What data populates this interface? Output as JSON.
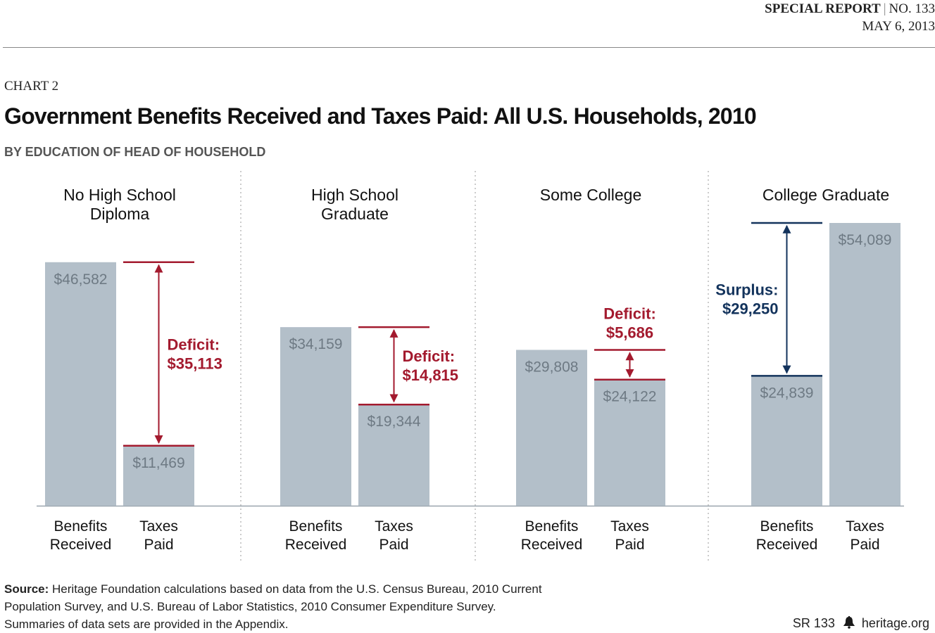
{
  "header": {
    "report_label": "SPECIAL REPORT",
    "report_number": "NO. 133",
    "date": "MAY 6, 2013"
  },
  "kicker": "CHART 2",
  "title": "Government Benefits Received and Taxes Paid: All U.S. Households, 2010",
  "subtitle": "BY EDUCATION OF HEAD OF HOUSEHOLD",
  "colors": {
    "bar": "#b3bfc9",
    "bar_label": "#6e7a84",
    "deficit": "#a31a2e",
    "surplus": "#13335c"
  },
  "chart_data": {
    "type": "bar",
    "title": "Government Benefits Received and Taxes Paid: All U.S. Households, 2010",
    "subtitle": "BY EDUCATION OF HEAD OF HOUSEHOLD",
    "ylim": [
      0,
      54089
    ],
    "grid": false,
    "bar_labels": [
      "Benefits\nReceived",
      "Taxes\nPaid"
    ],
    "groups": [
      {
        "name": "No High School\nDiploma",
        "benefits": 46582,
        "taxes": 11469,
        "benefits_label": "$46,582",
        "taxes_label": "$11,469",
        "diff_type": "deficit",
        "diff_label": "Deficit:",
        "diff_value": "$35,113",
        "diff_amount": 35113
      },
      {
        "name": "High School\nGraduate",
        "benefits": 34159,
        "taxes": 19344,
        "benefits_label": "$34,159",
        "taxes_label": "$19,344",
        "diff_type": "deficit",
        "diff_label": "Deficit:",
        "diff_value": "$14,815",
        "diff_amount": 14815
      },
      {
        "name": "Some College",
        "benefits": 29808,
        "taxes": 24122,
        "benefits_label": "$29,808",
        "taxes_label": "$24,122",
        "diff_type": "deficit",
        "diff_label": "Deficit:",
        "diff_value": "$5,686",
        "diff_amount": 5686
      },
      {
        "name": "College Graduate",
        "benefits": 24839,
        "taxes": 54089,
        "benefits_label": "$24,839",
        "taxes_label": "$54,089",
        "diff_type": "surplus",
        "diff_label": "Surplus:",
        "diff_value": "$29,250",
        "diff_amount": 29250
      }
    ]
  },
  "source": {
    "label": "Source:",
    "text": "Heritage Foundation calculations based on data from the U.S. Census Bureau, 2010 Current Population Survey, and U.S. Bureau of Labor Statistics, 2010 Consumer Expenditure Survey. Summaries of data sets are provided in the Appendix."
  },
  "footer": {
    "code": "SR 133",
    "site": "heritage.org",
    "logo_icon": "liberty-bell-icon"
  }
}
